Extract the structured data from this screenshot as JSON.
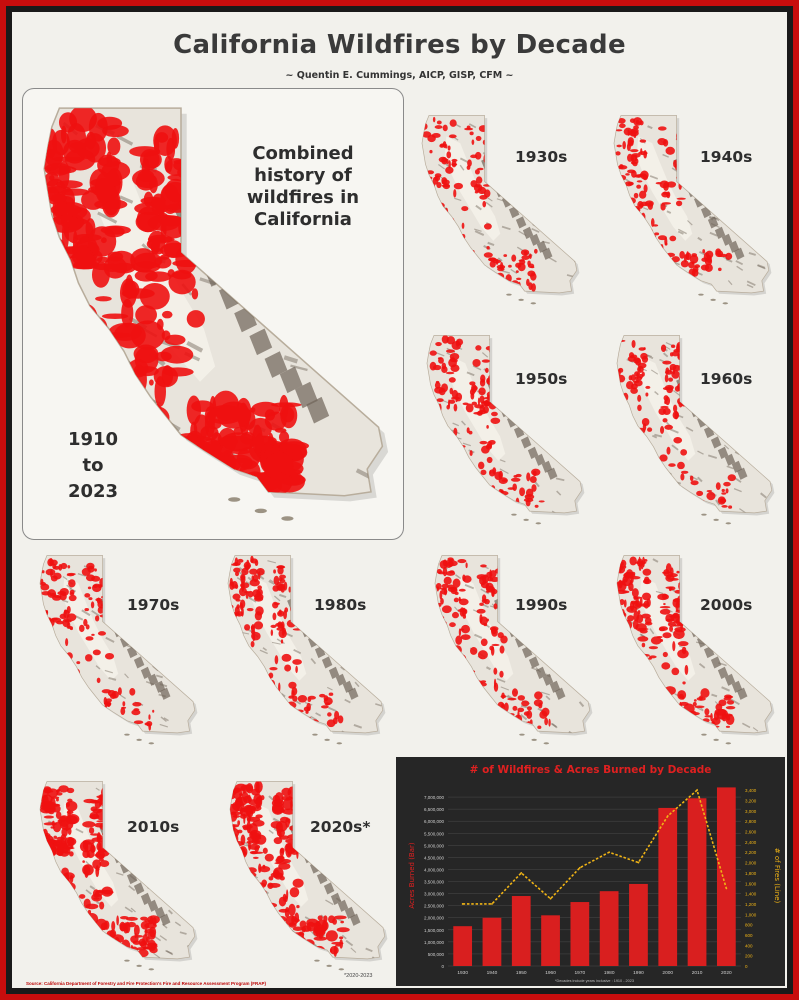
{
  "poster": {
    "title": "California Wildfires by Decade",
    "subtitle": "~ Quentin E. Cummings, AICP, GISP, CFM ~",
    "combined_caption": [
      "Combined",
      "history of",
      "wildfires in",
      "California"
    ],
    "combined_years": [
      "1910",
      "to",
      "2023"
    ],
    "footnote": "*2020-2023",
    "source": "Source: California Department of Forestry and Fire Protection's Fire and Resource Assessment Program (FRAP)"
  },
  "decades": [
    {
      "label": "1930s",
      "burn": 0.35
    },
    {
      "label": "1940s",
      "burn": 0.4
    },
    {
      "label": "1950s",
      "burn": 0.4
    },
    {
      "label": "1960s",
      "burn": 0.35
    },
    {
      "label": "1970s",
      "burn": 0.4
    },
    {
      "label": "1980s",
      "burn": 0.45
    },
    {
      "label": "1990s",
      "burn": 0.45
    },
    {
      "label": "2000s",
      "burn": 0.6
    },
    {
      "label": "2010s",
      "burn": 0.75
    },
    {
      "label": "2020s*",
      "burn": 0.8
    }
  ],
  "colors": {
    "fire": "#ee1111",
    "terrain": "#e8e4dc",
    "shadow": "#6f6458",
    "bar": "#d91f1f",
    "line": "#f0b416",
    "chart_bg": "#262626",
    "chart_title": "#e02020"
  },
  "chart_data": {
    "type": "bar",
    "title": "# of Wildfires & Acres Burned by Decade",
    "categories": [
      "1930",
      "1940",
      "1950",
      "1960",
      "1970",
      "1980",
      "1990",
      "2000",
      "2010",
      "2020"
    ],
    "series": [
      {
        "name": "Acres Burned (Bar)",
        "type": "bar",
        "axis": "left",
        "values": [
          1650000,
          2000000,
          2900000,
          2100000,
          2650000,
          3100000,
          3400000,
          6550000,
          6950000,
          7400000
        ]
      },
      {
        "name": "# of Fires (Line)",
        "type": "line",
        "axis": "right",
        "values": [
          1200,
          1200,
          1800,
          1300,
          1900,
          2200,
          2000,
          2900,
          3400,
          1500
        ]
      }
    ],
    "ylabel": "Acres Burned (Bar)",
    "y2label": "# of Fires (Line)",
    "xnote": "*Decades include years inclusive : 1910 - 2023",
    "ylim": [
      0,
      7500000
    ],
    "y2lim": [
      0,
      3500
    ],
    "yticks": [
      "0",
      "500,000",
      "1,000,000",
      "1,500,000",
      "2,000,000",
      "2,500,000",
      "3,000,000",
      "3,500,000",
      "4,000,000",
      "4,500,000",
      "5,000,000",
      "5,500,000",
      "6,000,000",
      "6,500,000",
      "7,000,000"
    ],
    "y2ticks": [
      "0",
      "200",
      "400",
      "600",
      "800",
      "1,000",
      "1,200",
      "1,400",
      "1,600",
      "1,800",
      "2,000",
      "2,200",
      "2,400",
      "2,600",
      "2,800",
      "3,000",
      "3,200",
      "3,400"
    ],
    "grid": true
  }
}
